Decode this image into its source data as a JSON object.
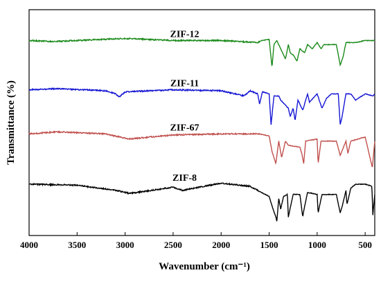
{
  "chart_data": {
    "type": "line",
    "xlabel": "Wavenumber (cm⁻¹)",
    "ylabel": "Transmittance (%)",
    "xlim": [
      4000,
      400
    ],
    "x_ticks": [
      "4000",
      "3500",
      "3000",
      "2500",
      "2000",
      "1500",
      "1000",
      "500"
    ],
    "x_tick_values": [
      4000,
      3500,
      3000,
      2500,
      2000,
      1500,
      1000,
      500
    ],
    "y_ticks_shown": false,
    "series": [
      {
        "name": "ZIF-12",
        "color": "#1a8a1a",
        "baseline": 8.5,
        "points": [
          [
            4000,
            8.5
          ],
          [
            3750,
            8.45
          ],
          [
            3000,
            8.6
          ],
          [
            2500,
            8.5
          ],
          [
            2000,
            8.5
          ],
          [
            1620,
            8.4
          ],
          [
            1580,
            8.5
          ],
          [
            1500,
            8.55
          ],
          [
            1470,
            7.2
          ],
          [
            1450,
            8.3
          ],
          [
            1420,
            8.5
          ],
          [
            1380,
            8.1
          ],
          [
            1330,
            7.6
          ],
          [
            1300,
            8.3
          ],
          [
            1280,
            7.9
          ],
          [
            1250,
            7.8
          ],
          [
            1210,
            7.5
          ],
          [
            1180,
            8.1
          ],
          [
            1130,
            7.9
          ],
          [
            1100,
            8.3
          ],
          [
            1050,
            8.1
          ],
          [
            1000,
            8.4
          ],
          [
            960,
            8.1
          ],
          [
            930,
            8.3
          ],
          [
            880,
            8.3
          ],
          [
            800,
            8.3
          ],
          [
            760,
            7.3
          ],
          [
            730,
            7.7
          ],
          [
            700,
            8.4
          ],
          [
            600,
            8.4
          ],
          [
            500,
            8.5
          ],
          [
            400,
            8.5
          ]
        ]
      },
      {
        "name": "ZIF-11",
        "color": "#1414d4",
        "baseline": 6.1,
        "points": [
          [
            4000,
            6.1
          ],
          [
            3700,
            6.15
          ],
          [
            3200,
            6.05
          ],
          [
            3100,
            5.9
          ],
          [
            3060,
            5.75
          ],
          [
            3000,
            6.0
          ],
          [
            2500,
            6.1
          ],
          [
            2000,
            6.05
          ],
          [
            1760,
            5.8
          ],
          [
            1700,
            6.05
          ],
          [
            1620,
            5.9
          ],
          [
            1600,
            5.4
          ],
          [
            1570,
            6.0
          ],
          [
            1500,
            5.9
          ],
          [
            1480,
            4.4
          ],
          [
            1450,
            5.8
          ],
          [
            1400,
            5.8
          ],
          [
            1380,
            5.6
          ],
          [
            1300,
            5.2
          ],
          [
            1280,
            4.8
          ],
          [
            1250,
            5.2
          ],
          [
            1230,
            4.6
          ],
          [
            1200,
            5.6
          ],
          [
            1150,
            5.1
          ],
          [
            1100,
            5.9
          ],
          [
            1080,
            5.5
          ],
          [
            1000,
            5.9
          ],
          [
            950,
            5.2
          ],
          [
            900,
            5.7
          ],
          [
            850,
            5.9
          ],
          [
            780,
            5.9
          ],
          [
            760,
            4.4
          ],
          [
            740,
            4.8
          ],
          [
            700,
            5.9
          ],
          [
            650,
            5.9
          ],
          [
            600,
            5.6
          ],
          [
            500,
            5.9
          ],
          [
            420,
            5.8
          ],
          [
            400,
            5.9
          ]
        ]
      },
      {
        "name": "ZIF-67",
        "color": "#c0504d",
        "baseline": 3.95,
        "points": [
          [
            4000,
            3.95
          ],
          [
            3700,
            4.05
          ],
          [
            3200,
            3.95
          ],
          [
            2960,
            3.7
          ],
          [
            2500,
            3.9
          ],
          [
            2000,
            3.95
          ],
          [
            1600,
            3.95
          ],
          [
            1500,
            3.85
          ],
          [
            1470,
            3.1
          ],
          [
            1430,
            2.5
          ],
          [
            1400,
            3.6
          ],
          [
            1370,
            2.8
          ],
          [
            1330,
            3.6
          ],
          [
            1300,
            3.4
          ],
          [
            1180,
            3.3
          ],
          [
            1160,
            3.0
          ],
          [
            1140,
            2.5
          ],
          [
            1120,
            3.6
          ],
          [
            1000,
            3.7
          ],
          [
            990,
            2.5
          ],
          [
            960,
            3.6
          ],
          [
            800,
            3.6
          ],
          [
            760,
            2.9
          ],
          [
            700,
            3.6
          ],
          [
            680,
            3.0
          ],
          [
            650,
            3.6
          ],
          [
            500,
            3.8
          ],
          [
            425,
            2.3
          ],
          [
            400,
            3.6
          ]
        ]
      },
      {
        "name": "ZIF-8",
        "color": "#000000",
        "baseline": 1.5,
        "points": [
          [
            4000,
            1.5
          ],
          [
            3500,
            1.45
          ],
          [
            3100,
            1.2
          ],
          [
            2950,
            1.05
          ],
          [
            2500,
            1.35
          ],
          [
            2400,
            1.2
          ],
          [
            2000,
            1.55
          ],
          [
            1700,
            1.4
          ],
          [
            1580,
            1.1
          ],
          [
            1500,
            0.9
          ],
          [
            1460,
            0.3
          ],
          [
            1430,
            -0.1
          ],
          [
            1420,
            -0.3
          ],
          [
            1400,
            0.8
          ],
          [
            1380,
            0.3
          ],
          [
            1350,
            0.9
          ],
          [
            1310,
            1.0
          ],
          [
            1300,
            -0.1
          ],
          [
            1250,
            1.0
          ],
          [
            1180,
            1.0
          ],
          [
            1150,
            -0.1
          ],
          [
            1140,
            0.2
          ],
          [
            1100,
            1.1
          ],
          [
            1000,
            1.0
          ],
          [
            990,
            0.1
          ],
          [
            950,
            1.0
          ],
          [
            800,
            1.0
          ],
          [
            760,
            0.1
          ],
          [
            740,
            0.4
          ],
          [
            700,
            1.2
          ],
          [
            690,
            0.5
          ],
          [
            650,
            1.3
          ],
          [
            600,
            1.5
          ],
          [
            500,
            1.5
          ],
          [
            430,
            1.4
          ],
          [
            420,
            0.0
          ],
          [
            400,
            1.0
          ]
        ]
      }
    ]
  }
}
